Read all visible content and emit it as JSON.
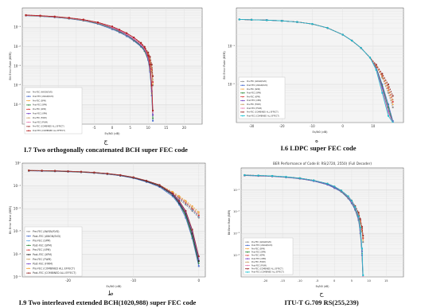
{
  "captions": [
    {
      "letter": "ﺝ",
      "text": "I.7 Two orthogonally concatenated BCH super FEC code"
    },
    {
      "letter": "ه",
      "text": "I.6 LDPC super FEC code"
    },
    {
      "letter": "ط",
      "text": "I.9 Two interleaved extended BCH(1020,988) super FEC code"
    },
    {
      "letter": "ح",
      "text": "ITU-T G.709 RS(255,239)"
    }
  ],
  "chart_data": [
    {
      "type": "line",
      "title": "",
      "xlabel": "Es/N0 (dB)",
      "ylabel": "Bit Error Rate (BER)",
      "log_y": true,
      "xlim": [
        -25,
        25
      ],
      "ylim": [
        1e-06,
        1
      ],
      "xticks": [
        "-20",
        "-15",
        "-10",
        "-5",
        "0",
        "5",
        "10",
        "15",
        "20"
      ],
      "yticks": [
        "10⁻¹",
        "10⁻²",
        "10⁻³",
        "10⁻⁴",
        "10⁻⁵"
      ],
      "grid": true,
      "legend": "bottom-left",
      "x": [
        -24,
        -20,
        -16,
        -12,
        -8,
        -4,
        0,
        2,
        4,
        6,
        8,
        9,
        10,
        10.5,
        11,
        11.3
      ],
      "series": [
        {
          "name": "Pre-FEC (AWGN/SVD)",
          "color": "#8a8a8a",
          "values": [
            0.4,
            0.37,
            0.33,
            0.28,
            0.22,
            0.15,
            0.08,
            0.055,
            0.035,
            0.02,
            0.01,
            0.006,
            0.003,
            0.0015,
            0.0005,
            0.0001
          ]
        },
        {
          "name": "Post-FEC (AWGN/SVD)",
          "color": "#4c6fd1",
          "values": [
            0.4,
            0.37,
            0.33,
            0.28,
            0.22,
            0.15,
            0.08,
            0.055,
            0.035,
            0.02,
            0.01,
            0.006,
            0.002,
            0.0005,
            3e-05,
            1.5e-06
          ]
        },
        {
          "name": "Pre-FEC (SPM)",
          "color": "#f2a33a",
          "values": [
            0.41,
            0.38,
            0.34,
            0.29,
            0.23,
            0.16,
            0.09,
            0.06,
            0.04,
            0.022,
            0.012,
            0.007,
            0.0035,
            0.0018,
            0.0006,
            0.00012
          ]
        },
        {
          "name": "Post-FEC (SPM)",
          "color": "#2e8b3a",
          "values": [
            0.41,
            0.38,
            0.34,
            0.29,
            0.23,
            0.16,
            0.09,
            0.06,
            0.04,
            0.022,
            0.011,
            0.006,
            0.0022,
            0.0006,
            4e-05,
            2e-06
          ]
        },
        {
          "name": "Pre-FEC (XPM)",
          "color": "#d93b3b",
          "values": [
            0.42,
            0.39,
            0.35,
            0.3,
            0.24,
            0.17,
            0.095,
            0.065,
            0.042,
            0.024,
            0.013,
            0.008,
            0.004,
            0.002,
            0.0007,
            0.00015
          ]
        },
        {
          "name": "Post-FEC (XPM)",
          "color": "#7b4ac7",
          "values": [
            0.42,
            0.39,
            0.35,
            0.3,
            0.24,
            0.17,
            0.095,
            0.065,
            0.042,
            0.024,
            0.012,
            0.007,
            0.0025,
            0.0007,
            5e-05,
            3e-06
          ]
        },
        {
          "name": "Pre-FEC (FWM)",
          "color": "#c9a26b",
          "values": [
            0.42,
            0.39,
            0.35,
            0.3,
            0.24,
            0.17,
            0.1,
            0.07,
            0.045,
            0.026,
            0.014,
            0.009,
            0.0045,
            0.0024,
            0.0009,
            0.0002
          ]
        },
        {
          "name": "Post-FEC (FWM)",
          "color": "#e77fb3",
          "values": [
            0.42,
            0.39,
            0.35,
            0.3,
            0.24,
            0.17,
            0.1,
            0.07,
            0.045,
            0.026,
            0.013,
            0.008,
            0.003,
            0.0009,
            8e-05,
            4e-06
          ]
        },
        {
          "name": "Pre-FEC (COMBINED ALL EFFECT)",
          "color": "#9a2f2f",
          "values": [
            0.43,
            0.4,
            0.36,
            0.31,
            0.25,
            0.18,
            0.11,
            0.075,
            0.05,
            0.03,
            0.016,
            0.01,
            0.005,
            0.003,
            0.0012,
            0.0003
          ]
        },
        {
          "name": "Post-FEC (COMBINED ALL EFFECT)",
          "color": "#b22222",
          "values": [
            0.43,
            0.4,
            0.36,
            0.31,
            0.25,
            0.18,
            0.11,
            0.075,
            0.05,
            0.03,
            0.015,
            0.009,
            0.0035,
            0.0012,
            0.0001,
            5e-06
          ]
        }
      ]
    },
    {
      "type": "line",
      "title": "",
      "xlabel": "Es/N0 (dB)",
      "ylabel": "Bit Error Rate (BER)",
      "log_y": true,
      "xlim": [
        -35,
        20
      ],
      "ylim": [
        0.001,
        1
      ],
      "xticks": [
        "-30",
        "-20",
        "-10",
        "0",
        "10"
      ],
      "yticks": [
        "10⁻¹",
        "10⁻²"
      ],
      "grid": true,
      "legend": "bottom-left",
      "x": [
        -34,
        -30,
        -25,
        -20,
        -15,
        -10,
        -5,
        0,
        3,
        6,
        9,
        11,
        13,
        15,
        16.5
      ],
      "series": [
        {
          "name": "Pre-FEC (AWGN/SVD)",
          "color": "#8a8a8a",
          "values": [
            0.5,
            0.49,
            0.48,
            0.46,
            0.43,
            0.38,
            0.3,
            0.2,
            0.14,
            0.09,
            0.05,
            0.03,
            0.015,
            0.006,
            0.0025
          ]
        },
        {
          "name": "Post-FEC (AWGN/SVD)",
          "color": "#4c6fd1",
          "values": [
            0.5,
            0.49,
            0.48,
            0.46,
            0.43,
            0.38,
            0.3,
            0.2,
            0.14,
            0.09,
            0.05,
            0.028,
            0.01,
            0.003,
            0.0011
          ]
        },
        {
          "name": "Pre-FEC (SPM)",
          "color": "#f2a33a",
          "values": [
            0.5,
            0.49,
            0.48,
            0.46,
            0.43,
            0.38,
            0.3,
            0.2,
            0.14,
            0.09,
            0.05,
            0.03,
            0.016,
            0.007,
            0.003
          ]
        },
        {
          "name": "Post-FEC (SPM)",
          "color": "#2e8b3a",
          "values": [
            0.5,
            0.49,
            0.48,
            0.46,
            0.43,
            0.38,
            0.3,
            0.2,
            0.14,
            0.09,
            0.05,
            0.027,
            0.009,
            0.0025,
            0.001
          ]
        },
        {
          "name": "Pre-FEC (XPM)",
          "color": "#d93b3b",
          "values": [
            0.5,
            0.49,
            0.48,
            0.46,
            0.43,
            0.38,
            0.3,
            0.2,
            0.14,
            0.09,
            0.05,
            0.031,
            0.017,
            0.008,
            0.0035
          ]
        },
        {
          "name": "Post-FEC (XPM)",
          "color": "#7b4ac7",
          "values": [
            0.5,
            0.49,
            0.48,
            0.46,
            0.43,
            0.38,
            0.3,
            0.2,
            0.14,
            0.09,
            0.05,
            0.026,
            0.008,
            0.002,
            0.001
          ]
        },
        {
          "name": "Pre-FEC (FWM)",
          "color": "#c9a26b",
          "values": [
            0.5,
            0.49,
            0.48,
            0.46,
            0.43,
            0.38,
            0.3,
            0.2,
            0.14,
            0.09,
            0.05,
            0.032,
            0.018,
            0.009,
            0.004
          ]
        },
        {
          "name": "Post-FEC (FWM)",
          "color": "#e77fb3",
          "values": [
            0.5,
            0.49,
            0.48,
            0.46,
            0.43,
            0.38,
            0.3,
            0.2,
            0.14,
            0.09,
            0.05,
            0.025,
            0.007,
            0.0018,
            0.001
          ]
        },
        {
          "name": "Pre-FEC (COMBINED ALL EFFECT)",
          "color": "#9a2f2f",
          "values": [
            0.5,
            0.49,
            0.48,
            0.46,
            0.43,
            0.38,
            0.3,
            0.2,
            0.14,
            0.09,
            0.05,
            0.033,
            0.019,
            0.01,
            0.005
          ]
        },
        {
          "name": "Post-FEC (COMBINED ALL EFFECT)",
          "color": "#17becf",
          "values": [
            0.5,
            0.49,
            0.48,
            0.46,
            0.43,
            0.38,
            0.3,
            0.2,
            0.14,
            0.09,
            0.05,
            0.024,
            0.006,
            0.0015,
            0.001
          ]
        }
      ]
    },
    {
      "type": "line",
      "title": "",
      "xlabel": "Es/N0 (dB)",
      "ylabel": "Bit Error Rate (BER)",
      "log_y": true,
      "xlim": [
        -27,
        1
      ],
      "ylim": [
        1e-05,
        1
      ],
      "xticks": [
        "-20",
        "-10",
        "0"
      ],
      "yticks": [
        "10⁰",
        "10⁻¹",
        "10⁻²",
        "10⁻³",
        "10⁻⁴",
        "10⁻⁵"
      ],
      "grid": true,
      "legend": "bottom-left",
      "x": [
        -26,
        -24,
        -22,
        -20,
        -18,
        -16,
        -14,
        -12,
        -10,
        -8,
        -6,
        -4,
        -3,
        -2,
        -1,
        0
      ],
      "series": [
        {
          "name": "Pre-FEC (AWGN/SVD)",
          "color": "#8a8a8a",
          "values": [
            0.46,
            0.45,
            0.44,
            0.42,
            0.4,
            0.37,
            0.33,
            0.28,
            0.22,
            0.15,
            0.09,
            0.04,
            0.025,
            0.015,
            0.008,
            0.004
          ]
        },
        {
          "name": "Post-FEC (AWGN/SVD)",
          "color": "#4c6fd1",
          "values": [
            0.46,
            0.45,
            0.44,
            0.42,
            0.4,
            0.37,
            0.33,
            0.28,
            0.22,
            0.15,
            0.09,
            0.035,
            0.015,
            0.004,
            0.0005,
            3e-05
          ]
        },
        {
          "name": "Pre-FEC (SPM)",
          "color": "#5fa8e8",
          "values": [
            0.47,
            0.46,
            0.45,
            0.43,
            0.41,
            0.38,
            0.34,
            0.29,
            0.23,
            0.16,
            0.1,
            0.045,
            0.028,
            0.017,
            0.009,
            0.0045
          ]
        },
        {
          "name": "Post-FEC (SPM)",
          "color": "#2e8b3a",
          "values": [
            0.47,
            0.46,
            0.45,
            0.43,
            0.41,
            0.38,
            0.34,
            0.29,
            0.23,
            0.16,
            0.1,
            0.04,
            0.017,
            0.005,
            0.0006,
            4e-05
          ]
        },
        {
          "name": "Pre-FEC (XPM)",
          "color": "#d93b3b",
          "values": [
            0.47,
            0.46,
            0.45,
            0.43,
            0.41,
            0.38,
            0.34,
            0.29,
            0.23,
            0.16,
            0.1,
            0.048,
            0.03,
            0.018,
            0.01,
            0.005
          ]
        },
        {
          "name": "Post-FEC (XPM)",
          "color": "#2b2b2b",
          "values": [
            0.47,
            0.46,
            0.45,
            0.43,
            0.41,
            0.38,
            0.34,
            0.29,
            0.23,
            0.16,
            0.1,
            0.042,
            0.018,
            0.006,
            0.0008,
            5e-05
          ]
        },
        {
          "name": "Pre-FEC (FWM)",
          "color": "#c9a26b",
          "values": [
            0.48,
            0.47,
            0.46,
            0.44,
            0.42,
            0.39,
            0.35,
            0.3,
            0.24,
            0.17,
            0.11,
            0.05,
            0.033,
            0.02,
            0.011,
            0.006
          ]
        },
        {
          "name": "Post-FEC (FWM)",
          "color": "#7b4ac7",
          "values": [
            0.48,
            0.47,
            0.46,
            0.44,
            0.42,
            0.39,
            0.35,
            0.3,
            0.24,
            0.17,
            0.11,
            0.044,
            0.02,
            0.007,
            0.001,
            6e-05
          ]
        },
        {
          "name": "Pre-FEC (COMBINED ALL EFFECT)",
          "color": "#f2a33a",
          "values": [
            0.48,
            0.47,
            0.46,
            0.44,
            0.42,
            0.39,
            0.35,
            0.3,
            0.24,
            0.17,
            0.11,
            0.055,
            0.036,
            0.022,
            0.013,
            0.007
          ]
        },
        {
          "name": "Post-FEC (COMBINED ALL EFFECT)",
          "color": "#9a2f2f",
          "values": [
            0.48,
            0.47,
            0.46,
            0.44,
            0.42,
            0.39,
            0.35,
            0.3,
            0.24,
            0.17,
            0.11,
            0.047,
            0.022,
            0.008,
            0.0012,
            8e-05
          ]
        }
      ]
    },
    {
      "type": "line",
      "title": "BER Performance of Code 8: RS(2720, 2550) (Full Decoder)",
      "xlabel": "Es/N0 (dB)",
      "ylabel": "Bit Error Rate (BER)",
      "log_y": true,
      "xlim": [
        -27,
        20
      ],
      "ylim": [
        1e-05,
        1
      ],
      "xticks": [
        "-20",
        "-15",
        "-10",
        "-5",
        "0",
        "5",
        "10",
        "15"
      ],
      "yticks": [
        "10⁻¹",
        "10⁻²",
        "10⁻³",
        "10⁻⁴"
      ],
      "grid": true,
      "legend": "bottom-left",
      "x": [
        -26,
        -22,
        -18,
        -14,
        -10,
        -6,
        -2,
        0,
        2,
        4,
        5,
        6,
        7,
        7.5,
        8,
        8.3
      ],
      "series": [
        {
          "name": "Pre-FEC (AWGN/SVD)",
          "color": "#8a8a8a",
          "values": [
            0.45,
            0.43,
            0.41,
            0.37,
            0.32,
            0.25,
            0.17,
            0.12,
            0.08,
            0.04,
            0.025,
            0.014,
            0.006,
            0.003,
            0.0012,
            0.0004
          ]
        },
        {
          "name": "Post-FEC (AWGN/SVD)",
          "color": "#4c6fd1",
          "values": [
            0.45,
            0.43,
            0.41,
            0.37,
            0.32,
            0.25,
            0.17,
            0.12,
            0.08,
            0.04,
            0.024,
            0.012,
            0.004,
            0.001,
            0.0001,
            5e-06
          ]
        },
        {
          "name": "Pre-FEC (SPM)",
          "color": "#f2a33a",
          "values": [
            0.46,
            0.44,
            0.42,
            0.38,
            0.33,
            0.26,
            0.18,
            0.13,
            0.085,
            0.043,
            0.027,
            0.015,
            0.007,
            0.0035,
            0.0014,
            0.0005
          ]
        },
        {
          "name": "Post-FEC (SPM)",
          "color": "#2e8b3a",
          "values": [
            0.46,
            0.44,
            0.42,
            0.38,
            0.33,
            0.26,
            0.18,
            0.13,
            0.085,
            0.043,
            0.026,
            0.013,
            0.0045,
            0.0012,
            0.00012,
            6e-06
          ]
        },
        {
          "name": "Pre-FEC (XPM)",
          "color": "#d93b3b",
          "values": [
            0.46,
            0.44,
            0.42,
            0.38,
            0.33,
            0.26,
            0.18,
            0.13,
            0.088,
            0.045,
            0.028,
            0.016,
            0.0075,
            0.0038,
            0.0016,
            0.0006
          ]
        },
        {
          "name": "Post-FEC (XPM)",
          "color": "#7b4ac7",
          "values": [
            0.46,
            0.44,
            0.42,
            0.38,
            0.33,
            0.26,
            0.18,
            0.13,
            0.088,
            0.045,
            0.027,
            0.014,
            0.005,
            0.0014,
            0.00015,
            8e-06
          ]
        },
        {
          "name": "Pre-FEC (FWM)",
          "color": "#c9a26b",
          "values": [
            0.47,
            0.45,
            0.43,
            0.39,
            0.34,
            0.27,
            0.19,
            0.14,
            0.09,
            0.047,
            0.03,
            0.017,
            0.008,
            0.004,
            0.0018,
            0.0007
          ]
        },
        {
          "name": "Post-FEC (FWM)",
          "color": "#e77fb3",
          "values": [
            0.47,
            0.45,
            0.43,
            0.39,
            0.34,
            0.27,
            0.19,
            0.14,
            0.09,
            0.047,
            0.029,
            0.015,
            0.0055,
            0.0016,
            0.00018,
            1e-05
          ]
        },
        {
          "name": "Pre-FEC (COMBINED ALL EFFECT)",
          "color": "#9a2f2f",
          "values": [
            0.47,
            0.45,
            0.43,
            0.39,
            0.34,
            0.27,
            0.19,
            0.14,
            0.092,
            0.05,
            0.032,
            0.018,
            0.009,
            0.0045,
            0.002,
            0.0008
          ]
        },
        {
          "name": "Post-FEC (COMBINED ALL EFFECT)",
          "color": "#17becf",
          "values": [
            0.47,
            0.45,
            0.43,
            0.39,
            0.34,
            0.27,
            0.19,
            0.14,
            0.092,
            0.05,
            0.031,
            0.016,
            0.006,
            0.0018,
            0.0002,
            1.2e-05
          ]
        }
      ]
    }
  ]
}
